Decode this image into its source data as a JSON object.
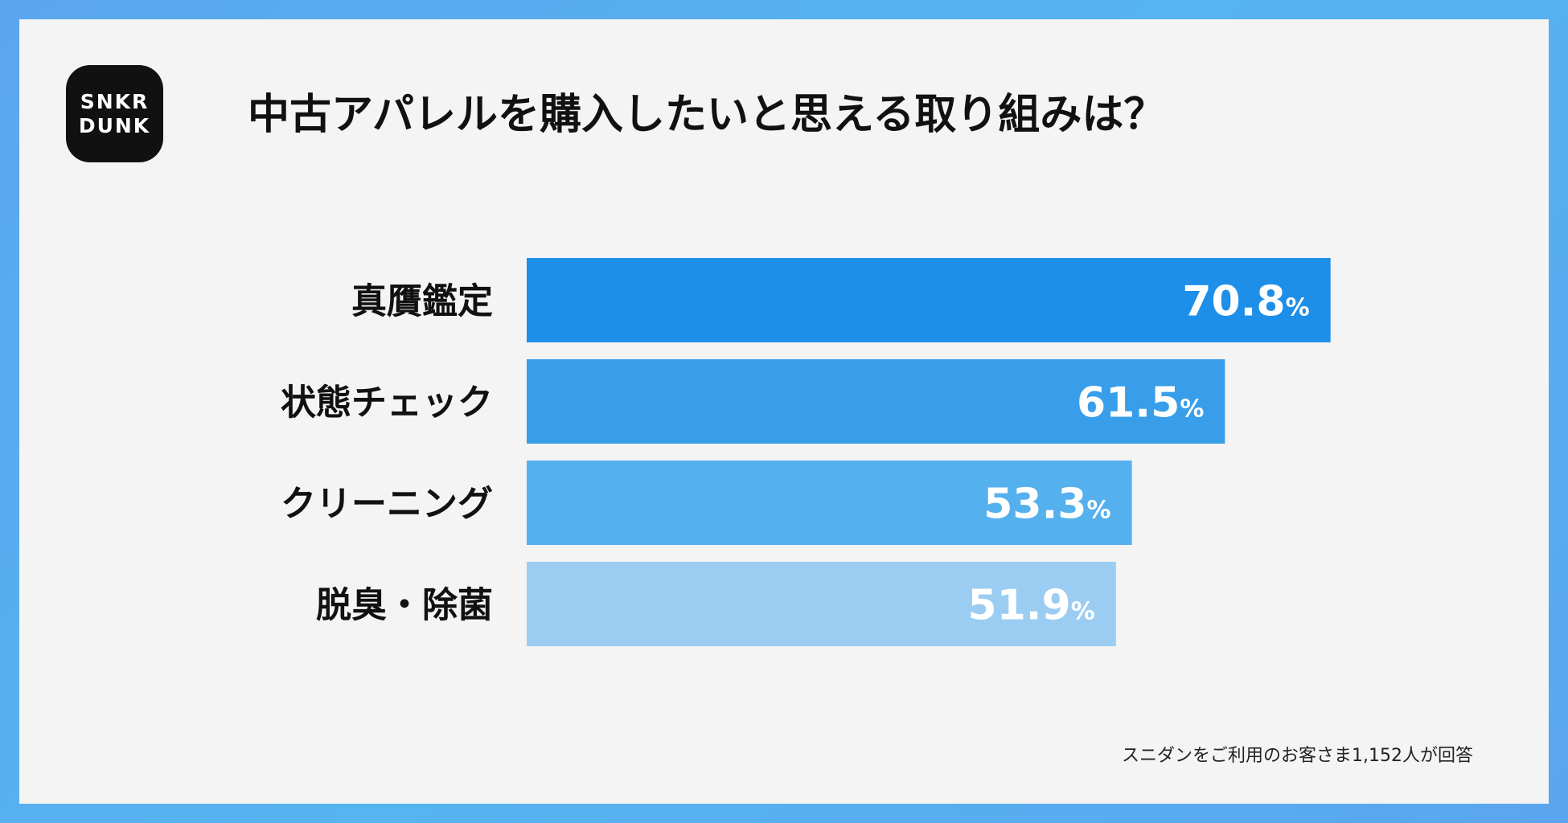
{
  "logo": {
    "line1": "SNKR",
    "line2": "DUNK"
  },
  "title": "中古アパレルを購入したいと思える取り組みは？",
  "footnote": "スニダンをご利用のお客さま1,152人が回答",
  "chart_data": {
    "type": "bar",
    "orientation": "horizontal",
    "title": "中古アパレルを購入したいと思える取り組みは？",
    "categories": [
      "真贋鑑定",
      "状態チェック",
      "クリーニング",
      "脱臭・除菌"
    ],
    "values": [
      70.8,
      61.5,
      53.3,
      51.9
    ],
    "value_labels": [
      "70.8",
      "61.5",
      "53.3",
      "51.9"
    ],
    "unit": "%",
    "xlim": [
      0,
      100
    ],
    "bar_colors": [
      "#1e8fe8",
      "#389ee9",
      "#55b0ee",
      "#9bcdf2"
    ],
    "grid": false,
    "legend": "none"
  }
}
